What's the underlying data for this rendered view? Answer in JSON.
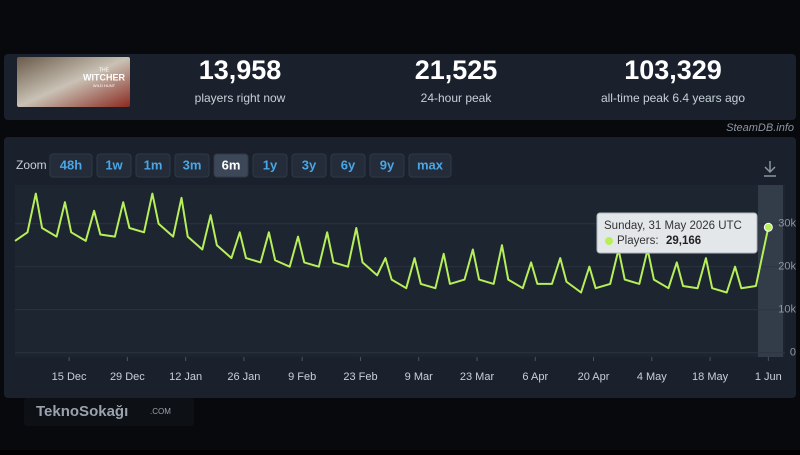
{
  "game_logo": [
    "THE",
    "WITCHER",
    "WILD HUNT"
  ],
  "stats": [
    {
      "value": "13,958",
      "label": "players right now"
    },
    {
      "value": "21,525",
      "label": "24-hour peak"
    },
    {
      "value": "103,329",
      "label": "all-time peak 6.4 years ago"
    }
  ],
  "source": "SteamDB.info",
  "zoom": {
    "label": "Zoom",
    "options": [
      "48h",
      "1w",
      "1m",
      "3m",
      "6m",
      "1y",
      "3y",
      "6y",
      "9y",
      "max"
    ],
    "active": "6m"
  },
  "watermark": {
    "name": "TeknoSokağı",
    "domain": ".COM"
  },
  "chart_data": {
    "type": "line",
    "color": "#b6ef5a",
    "x": [
      -13,
      -10,
      -8,
      -6.5,
      -3,
      -1,
      0.5,
      4,
      6,
      7.5,
      11,
      13,
      14.5,
      18,
      20,
      21.5,
      25,
      27,
      28.5,
      32,
      34,
      35.5,
      39,
      41,
      42.5,
      46,
      48,
      49.5,
      53,
      55,
      56.5,
      60,
      62,
      63.5,
      67,
      69,
      70.5,
      74,
      76,
      77.5,
      81,
      83,
      84.5,
      88,
      90,
      91.5,
      95,
      97,
      98.5,
      102,
      104,
      105.5,
      109,
      111,
      112.5,
      116,
      118,
      119.5,
      123,
      125,
      126.5,
      130,
      132,
      133.5,
      137,
      139,
      140.5,
      144,
      146,
      147.5,
      151,
      153,
      154.5,
      158,
      160,
      161.5,
      165,
      168
    ],
    "values": [
      26000,
      28000,
      37000,
      29000,
      27000,
      35000,
      28000,
      26000,
      33000,
      27500,
      27000,
      35000,
      29000,
      28000,
      37000,
      30000,
      27000,
      36000,
      27000,
      24000,
      32000,
      25000,
      22000,
      28000,
      22000,
      21000,
      28000,
      21500,
      20000,
      27000,
      21000,
      20000,
      28000,
      21000,
      20000,
      29000,
      21000,
      18000,
      22000,
      17000,
      15000,
      22000,
      16000,
      15000,
      23000,
      16000,
      17000,
      24000,
      17000,
      16000,
      25000,
      17000,
      15000,
      21000,
      16000,
      16000,
      22000,
      16500,
      14000,
      20000,
      15000,
      16000,
      24000,
      17000,
      16000,
      24000,
      17000,
      15000,
      21000,
      15500,
      15000,
      22000,
      15000,
      14000,
      20000,
      15000,
      15500,
      29166
    ],
    "xlim": [
      -13,
      172
    ],
    "xticks": [
      {
        "value": 0,
        "label": "15 Dec"
      },
      {
        "value": 14,
        "label": "29 Dec"
      },
      {
        "value": 28,
        "label": "12 Jan"
      },
      {
        "value": 42,
        "label": "26 Jan"
      },
      {
        "value": 56,
        "label": "9 Feb"
      },
      {
        "value": 70,
        "label": "23 Feb"
      },
      {
        "value": 84,
        "label": "9 Mar"
      },
      {
        "value": 98,
        "label": "23 Mar"
      },
      {
        "value": 112,
        "label": "6 Apr"
      },
      {
        "value": 126,
        "label": "20 Apr"
      },
      {
        "value": 140,
        "label": "4 May"
      },
      {
        "value": 154,
        "label": "18 May"
      },
      {
        "value": 168,
        "label": "1 Jun"
      }
    ],
    "ylim": [
      -1000,
      39000
    ],
    "yticks": [
      0,
      {
        "value": 10000,
        "label": "10k"
      },
      {
        "value": 20000,
        "label": "20k"
      },
      {
        "value": 30000,
        "label": "30k"
      }
    ],
    "grid": true,
    "tooltip": {
      "title": "Sunday, 31 May 2026 UTC",
      "label": "Players:",
      "value_label": "29,166"
    }
  }
}
